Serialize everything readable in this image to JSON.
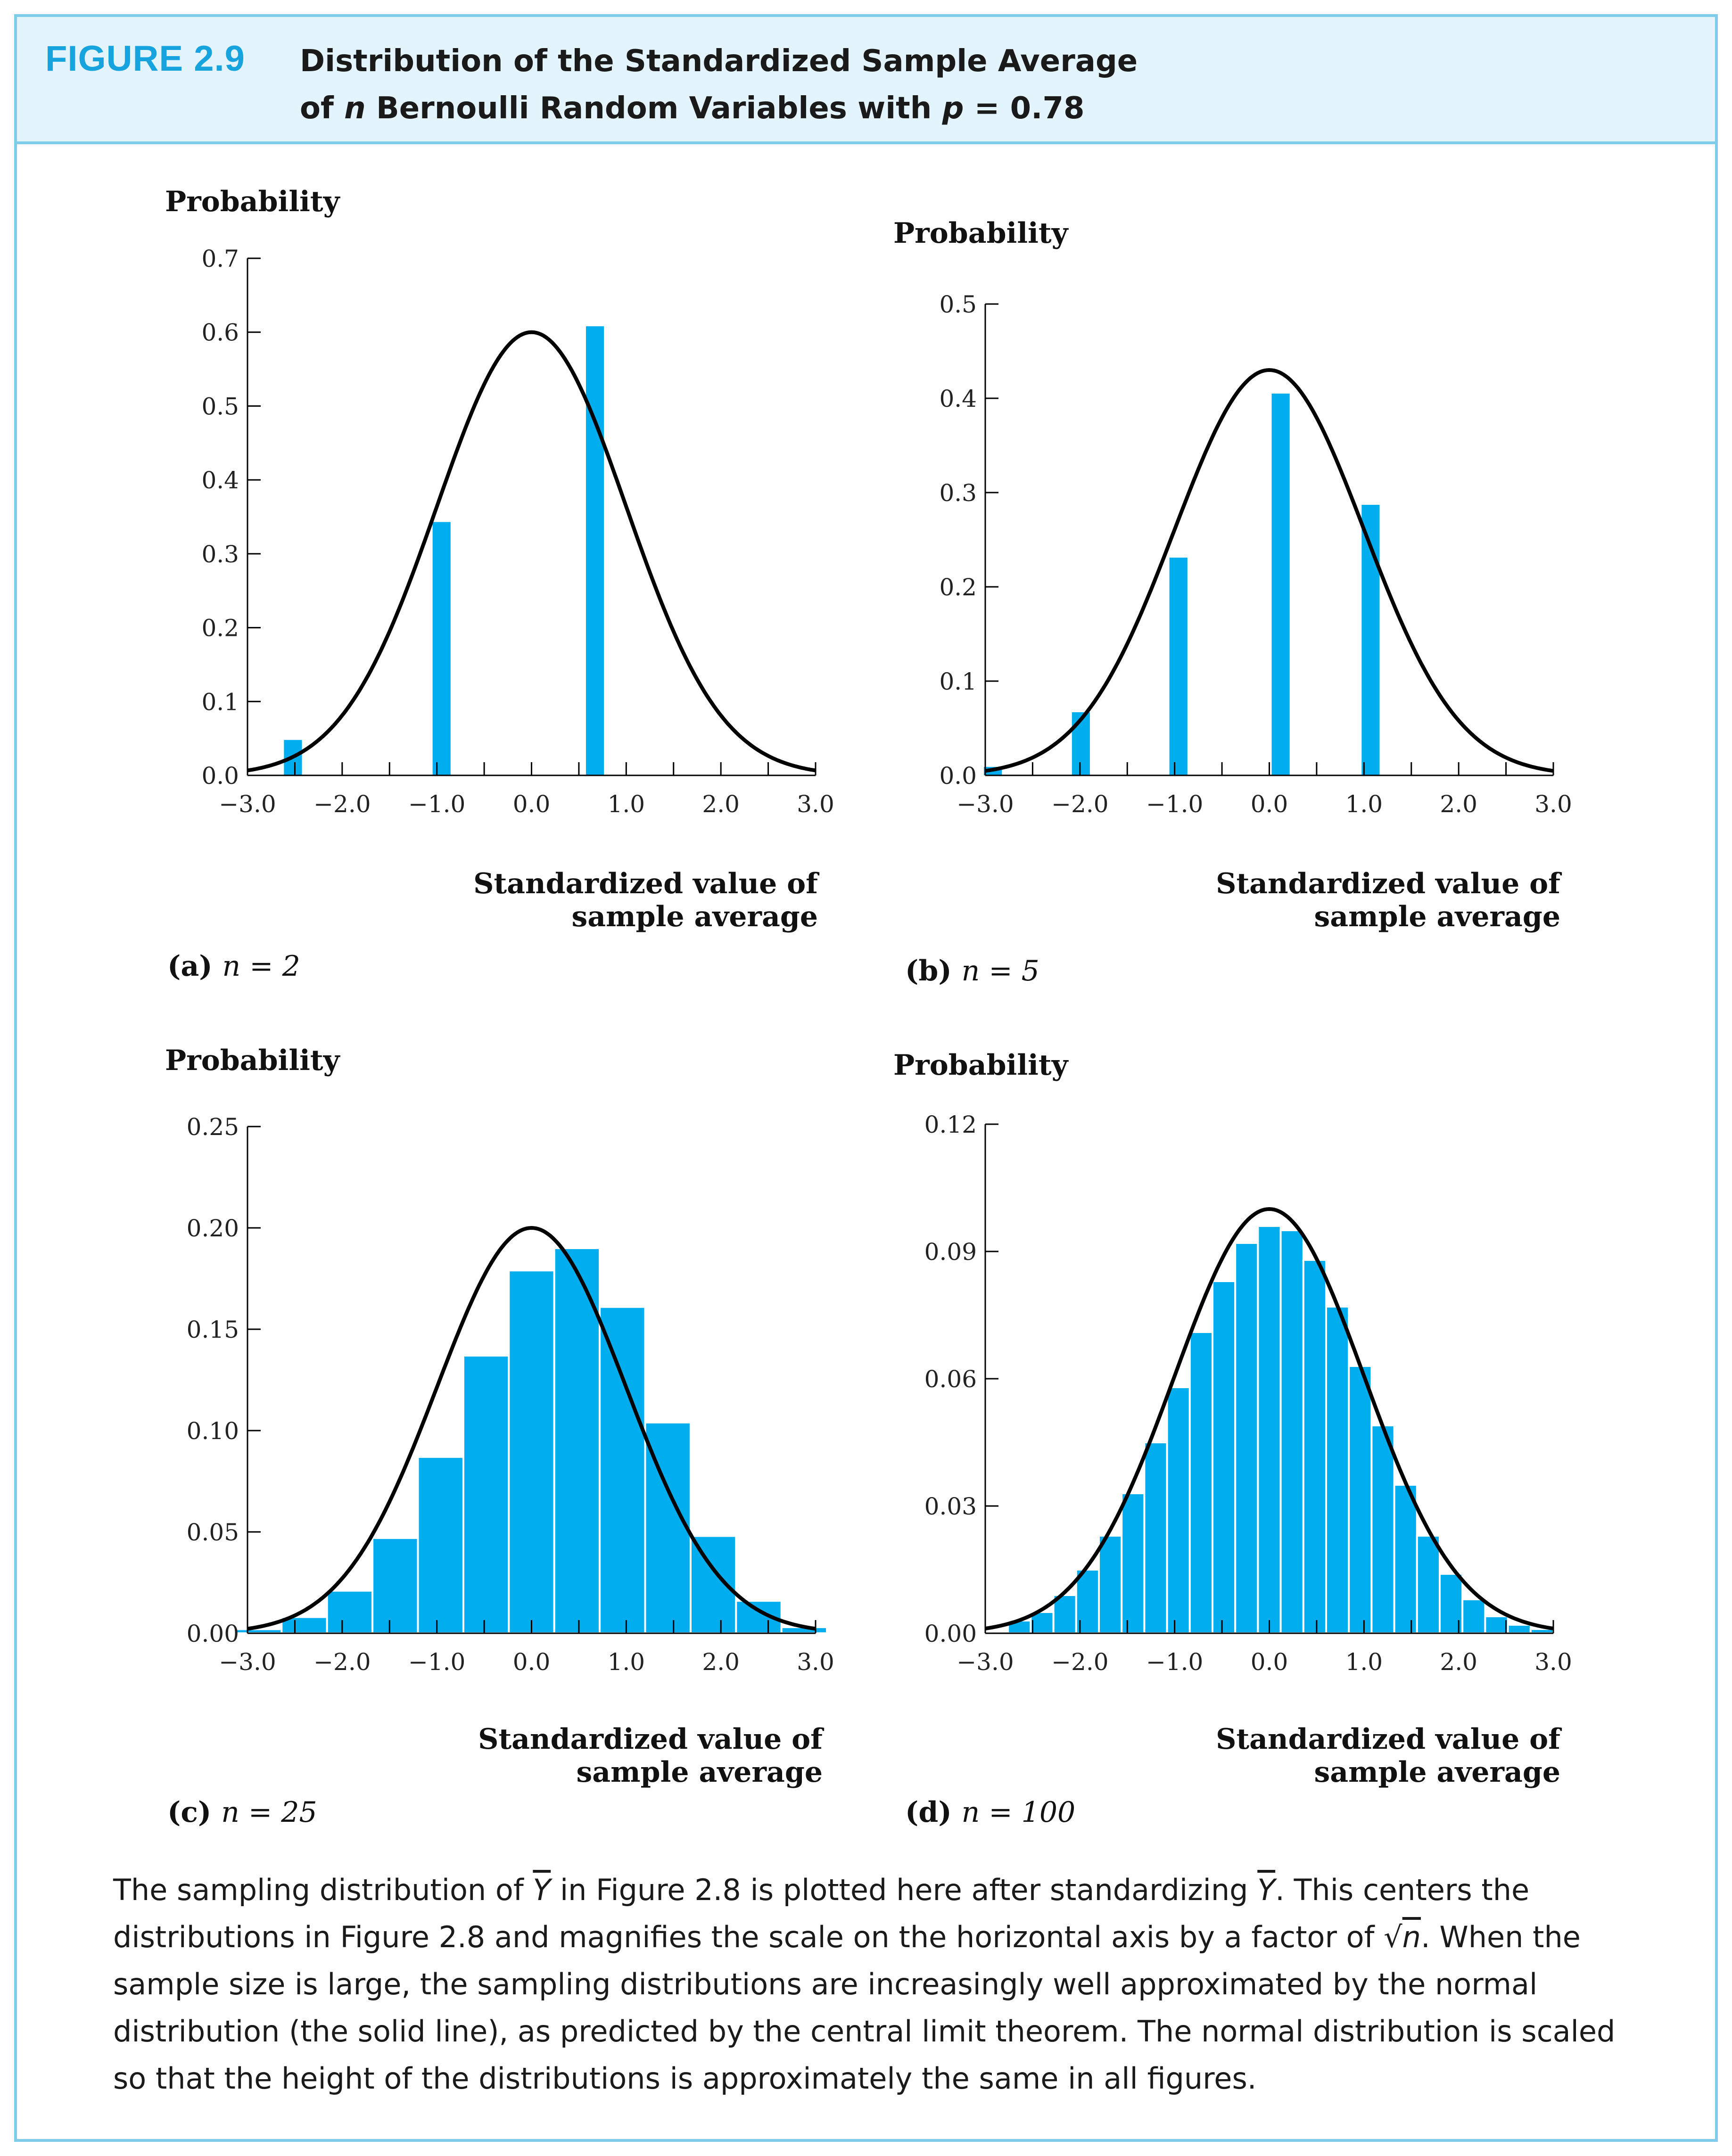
{
  "header": {
    "figure_label": "FIGURE 2.9",
    "title_line1": "Distribution of the Standardized Sample Average",
    "title_line2_pre": "of ",
    "title_line2_n": "n",
    "title_line2_mid": " Bernoulli Random Variables with ",
    "title_line2_p": "p",
    "title_line2_post": " = 0.78"
  },
  "colors": {
    "bar": "#00aeef",
    "curve": "#000000",
    "accent": "#16a3de",
    "border": "#7ecbea",
    "header_bg": "#e4f4fc"
  },
  "caption": {
    "part1": "The sampling distribution of ",
    "ybar1": "Y",
    "part2": " in Figure 2.8 is plotted here after standardizing ",
    "ybar2": "Y",
    "part3": ". This centers the distributions in Figure 2.8 and magnifies the scale on the horizontal axis by a factor of ",
    "sqrt_sym": "√",
    "sqrt_n": "n",
    "part4": ". When the sample size is large, the sampling distributions are increasingly well approximated by the normal distribution (the solid line), as predicted by the central limit theorem. The normal distribution is scaled so that the height of the distributions is approximately the same in all figures."
  },
  "chart_data": [
    {
      "type": "bar",
      "panel_label": "(a)",
      "panel_n": "n = 2",
      "ylabel": "Probability",
      "xlabel_line1": "Standardized value of",
      "xlabel_line2": "sample average",
      "xlim": [
        -3.0,
        3.0
      ],
      "ylim": [
        0,
        0.7
      ],
      "xticks": [
        "−3.0",
        "−2.0",
        "−1.0",
        "0.0",
        "1.0",
        "2.0",
        "3.0"
      ],
      "yticks": [
        "0.0",
        "0.1",
        "0.2",
        "0.3",
        "0.4",
        "0.5",
        "0.6",
        "0.7"
      ],
      "ytick_values": [
        0,
        0.1,
        0.2,
        0.3,
        0.4,
        0.5,
        0.6,
        0.7
      ],
      "bar_width": 0.19,
      "x": [
        -2.52,
        -0.95,
        0.67
      ],
      "values": [
        0.048,
        0.343,
        0.608
      ],
      "curve_peak": 0.6
    },
    {
      "type": "bar",
      "panel_label": "(b)",
      "panel_n": "n = 5",
      "ylabel": "Probability",
      "xlabel_line1": "Standardized value of",
      "xlabel_line2": "sample average",
      "xlim": [
        -3.0,
        3.0
      ],
      "ylim": [
        0,
        0.5
      ],
      "xticks": [
        "−3.0",
        "−2.0",
        "−1.0",
        "0.0",
        "1.0",
        "2.0",
        "3.0"
      ],
      "yticks": [
        "0.0",
        "0.1",
        "0.2",
        "0.3",
        "0.4",
        "0.5"
      ],
      "ytick_values": [
        0,
        0.1,
        0.2,
        0.3,
        0.4,
        0.5
      ],
      "bar_width": 0.19,
      "x": [
        -2.92,
        -1.99,
        -0.96,
        0.12,
        1.07
      ],
      "values": [
        0.009,
        0.067,
        0.231,
        0.405,
        0.287
      ],
      "curve_peak": 0.43
    },
    {
      "type": "bar",
      "panel_label": "(c)",
      "panel_n": "n = 25",
      "ylabel": "Probability",
      "xlabel_line1": "Standardized value of",
      "xlabel_line2": "sample average",
      "xlim": [
        -3.0,
        3.0
      ],
      "ylim": [
        0,
        0.25
      ],
      "xticks": [
        "−3.0",
        "−2.0",
        "−1.0",
        "0.0",
        "1.0",
        "2.0",
        "3.0"
      ],
      "yticks": [
        "0.00",
        "0.05",
        "0.10",
        "0.15",
        "0.20",
        "0.25"
      ],
      "ytick_values": [
        0,
        0.05,
        0.1,
        0.15,
        0.2,
        0.25
      ],
      "bar_width": 0.48,
      "x": [
        -2.88,
        -2.4,
        -1.92,
        -1.44,
        -0.96,
        -0.48,
        0.0,
        0.48,
        0.96,
        1.44,
        1.92,
        2.4,
        2.88
      ],
      "values": [
        0.002,
        0.008,
        0.021,
        0.047,
        0.087,
        0.137,
        0.179,
        0.19,
        0.161,
        0.104,
        0.048,
        0.016,
        0.003
      ],
      "curve_peak": 0.2
    },
    {
      "type": "bar",
      "panel_label": "(d)",
      "panel_n": "n = 100",
      "ylabel": "Probability",
      "xlabel_line1": "Standardized value of",
      "xlabel_line2": "sample average",
      "xlim": [
        -3.0,
        3.0
      ],
      "ylim": [
        0,
        0.12
      ],
      "xticks": [
        "−3.0",
        "−2.0",
        "−1.0",
        "0.0",
        "1.0",
        "2.0",
        "3.0"
      ],
      "yticks": [
        "0.00",
        "0.03",
        "0.06",
        "0.09",
        "0.12"
      ],
      "ytick_values": [
        0,
        0.03,
        0.06,
        0.09,
        0.12
      ],
      "bar_width": 0.24,
      "x": [
        -2.64,
        -2.4,
        -2.16,
        -1.92,
        -1.68,
        -1.44,
        -1.2,
        -0.96,
        -0.72,
        -0.48,
        -0.24,
        0.0,
        0.24,
        0.48,
        0.72,
        0.96,
        1.2,
        1.44,
        1.68,
        1.92,
        2.16,
        2.4,
        2.64,
        2.88
      ],
      "values": [
        0.003,
        0.005,
        0.009,
        0.015,
        0.023,
        0.033,
        0.045,
        0.058,
        0.071,
        0.083,
        0.092,
        0.096,
        0.095,
        0.088,
        0.077,
        0.063,
        0.049,
        0.035,
        0.023,
        0.014,
        0.008,
        0.004,
        0.002,
        0.001
      ],
      "curve_peak": 0.1
    }
  ]
}
